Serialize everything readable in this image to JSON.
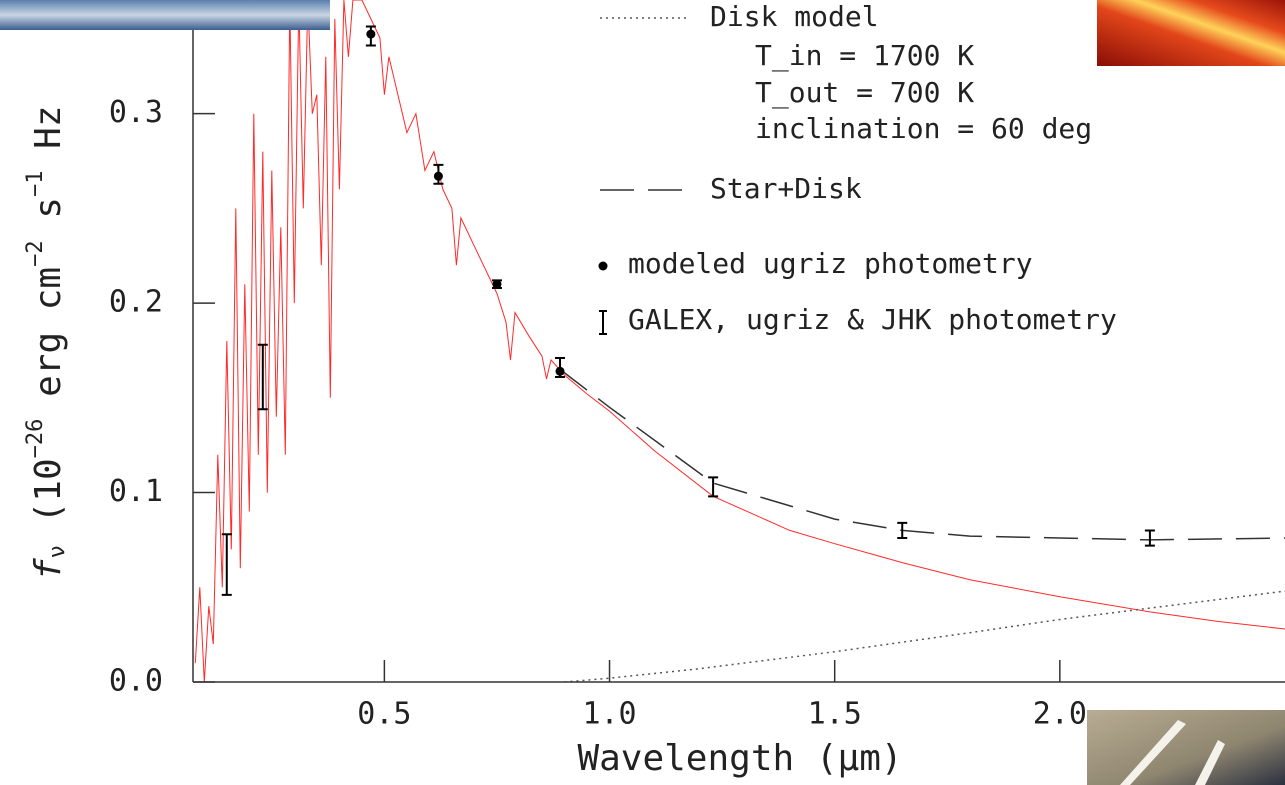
{
  "chart_data": {
    "type": "line",
    "xlabel": "Wavelength (μm)",
    "ylabel": [
      "f",
      "ν",
      " (10",
      "−26",
      " erg cm",
      "−2",
      " s",
      "−1",
      " Hz"
    ],
    "xlim": [
      0.075,
      2.5
    ],
    "ylim": [
      0,
      0.36
    ],
    "xticks": [
      0.5,
      {
        "value": 1,
        "label": "1.0"
      },
      1.5,
      {
        "value": 2,
        "label": "2.0"
      }
    ],
    "yticks": [
      {
        "value": 0,
        "label": "0.0"
      },
      0.1,
      0.2,
      0.3
    ],
    "annotations": [
      "T_in = 1700 K",
      "T_out = 700 K",
      "inclination = 60 deg"
    ],
    "series": [
      {
        "kind": "line",
        "style": "solid",
        "color": "#ff2a2a",
        "x": [
          0.08,
          0.09,
          0.1,
          0.11,
          0.12,
          0.13,
          0.14,
          0.15,
          0.16,
          0.17,
          0.18,
          0.19,
          0.2,
          0.21,
          0.22,
          0.23,
          0.24,
          0.25,
          0.26,
          0.27,
          0.28,
          0.29,
          0.3,
          0.31,
          0.32,
          0.33,
          0.34,
          0.35,
          0.36,
          0.37,
          0.38,
          0.39,
          0.4,
          0.41,
          0.42,
          0.43,
          0.45,
          0.47,
          0.49,
          0.5,
          0.51,
          0.53,
          0.55,
          0.57,
          0.59,
          0.61,
          0.63,
          0.65,
          0.66,
          0.67,
          0.7,
          0.72,
          0.75,
          0.77,
          0.78,
          0.79,
          0.82,
          0.85,
          0.86,
          0.87,
          0.9,
          0.95,
          1.0,
          1.1,
          1.23,
          1.4,
          1.5,
          1.65,
          1.8,
          2.0,
          2.2,
          2.35,
          2.5
        ],
        "values": [
          0.01,
          0.05,
          0.0,
          0.04,
          0.02,
          0.12,
          0.05,
          0.18,
          0.07,
          0.25,
          0.06,
          0.21,
          0.09,
          0.3,
          0.12,
          0.28,
          0.1,
          0.27,
          0.14,
          0.24,
          0.12,
          0.36,
          0.2,
          0.36,
          0.25,
          0.36,
          0.3,
          0.31,
          0.22,
          0.33,
          0.15,
          0.35,
          0.26,
          0.36,
          0.33,
          0.36,
          0.36,
          0.35,
          0.34,
          0.31,
          0.33,
          0.31,
          0.29,
          0.3,
          0.27,
          0.28,
          0.26,
          0.25,
          0.22,
          0.245,
          0.23,
          0.22,
          0.205,
          0.19,
          0.17,
          0.195,
          0.183,
          0.172,
          0.16,
          0.17,
          0.162,
          0.152,
          0.143,
          0.122,
          0.098,
          0.08,
          0.073,
          0.063,
          0.054,
          0.045,
          0.037,
          0.032,
          0.028
        ]
      },
      {
        "name": "Disk model",
        "kind": "line",
        "style": "dotted",
        "color": "#555555",
        "x": [
          0.9,
          1.0,
          1.2,
          1.5,
          1.8,
          2.0,
          2.2,
          2.5
        ],
        "values": [
          0,
          0.002,
          0.007,
          0.016,
          0.026,
          0.033,
          0.039,
          0.048
        ]
      },
      {
        "name": "Star+Disk",
        "kind": "line",
        "style": "dashed",
        "color": "#333333",
        "x": [
          0.89,
          1.0,
          1.23,
          1.5,
          1.65,
          1.8,
          2.0,
          2.2,
          2.5
        ],
        "values": [
          0.165,
          0.145,
          0.105,
          0.086,
          0.08,
          0.077,
          0.076,
          0.075,
          0.076
        ]
      },
      {
        "name": "modeled ugriz photometry",
        "kind": "scatter",
        "color": "#000000",
        "x": [
          0.47,
          0.62,
          0.75,
          0.89
        ],
        "values": [
          0.342,
          0.267,
          0.21,
          0.164
        ]
      },
      {
        "name": "GALEX, ugriz & JHK photometry",
        "kind": "errorbar",
        "color": "#000000",
        "x": [
          0.15,
          0.23,
          0.47,
          0.62,
          0.75,
          0.89,
          1.23,
          1.65,
          2.2
        ],
        "values": [
          0.062,
          0.161,
          0.341,
          0.268,
          0.21,
          0.166,
          0.103,
          0.08,
          0.076
        ],
        "errors": [
          0.016,
          0.017,
          0.005,
          0.005,
          0.002,
          0.005,
          0.005,
          0.004,
          0.004
        ]
      }
    ]
  }
}
